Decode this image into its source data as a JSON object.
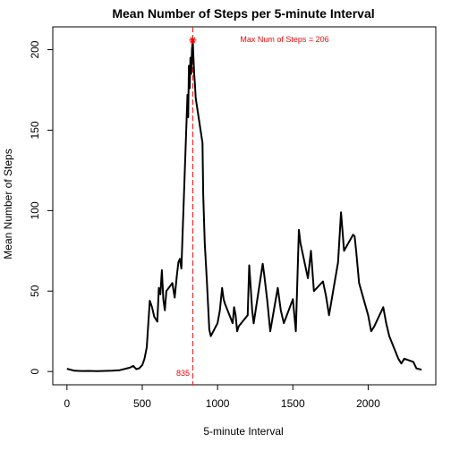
{
  "chart_data": {
    "type": "line",
    "title": "Mean Number of Steps per 5-minute Interval",
    "xlabel": "5-minute Interval",
    "ylabel": "Mean Number of Steps",
    "xlim": [
      -94,
      2449
    ],
    "ylim": [
      -8.24,
      214.2
    ],
    "xticks": [
      0,
      500,
      1000,
      1500,
      2000
    ],
    "yticks": [
      0,
      50,
      100,
      150,
      200
    ],
    "grid": false,
    "legend": "none",
    "line_color": "#000000",
    "x": [
      0,
      50,
      100,
      150,
      200,
      250,
      300,
      350,
      400,
      420,
      440,
      460,
      480,
      500,
      515,
      530,
      550,
      565,
      580,
      600,
      610,
      620,
      630,
      640,
      650,
      660,
      700,
      715,
      730,
      740,
      750,
      760,
      800,
      805,
      810,
      815,
      820,
      825,
      830,
      835,
      840,
      845,
      850,
      855,
      900,
      905,
      915,
      930,
      945,
      955,
      1000,
      1015,
      1030,
      1040,
      1050,
      1100,
      1110,
      1120,
      1130,
      1140,
      1200,
      1210,
      1220,
      1230,
      1240,
      1300,
      1310,
      1330,
      1350,
      1400,
      1420,
      1440,
      1500,
      1520,
      1540,
      1550,
      1600,
      1620,
      1640,
      1700,
      1720,
      1740,
      1800,
      1820,
      1840,
      1900,
      1910,
      1920,
      1940,
      2000,
      2020,
      2040,
      2100,
      2120,
      2140,
      2200,
      2220,
      2240,
      2300,
      2320,
      2355
    ],
    "y": [
      1.7,
      0.5,
      0.3,
      0.4,
      0.2,
      0.4,
      0.5,
      0.8,
      2,
      2.5,
      3.5,
      1.5,
      2,
      4,
      8,
      15,
      44,
      40,
      34,
      31,
      52,
      48,
      63,
      45,
      38,
      50,
      55,
      46,
      60,
      68,
      70,
      64,
      172,
      158,
      190,
      176,
      195,
      185,
      200,
      206,
      195,
      185,
      178,
      170,
      142,
      110,
      80,
      55,
      26,
      22,
      30,
      38,
      52,
      45,
      42,
      30,
      40,
      35,
      25,
      28,
      35,
      66,
      52,
      38,
      30,
      67,
      60,
      44,
      25,
      52,
      38,
      30,
      45,
      25,
      88,
      80,
      58,
      75,
      50,
      56,
      47,
      35,
      68,
      99,
      75,
      85,
      84,
      75,
      55,
      35,
      25,
      28,
      40,
      30,
      22,
      8,
      5,
      8,
      6,
      2,
      1.1
    ],
    "max_marker": {
      "x": 835,
      "y": 206,
      "marker": "asterisk",
      "color": "#ff0000"
    },
    "vline": {
      "x": 835,
      "style": "dashed",
      "color": "#ff0000",
      "label": "835"
    },
    "annotation": "Max Num of Steps =  206"
  }
}
